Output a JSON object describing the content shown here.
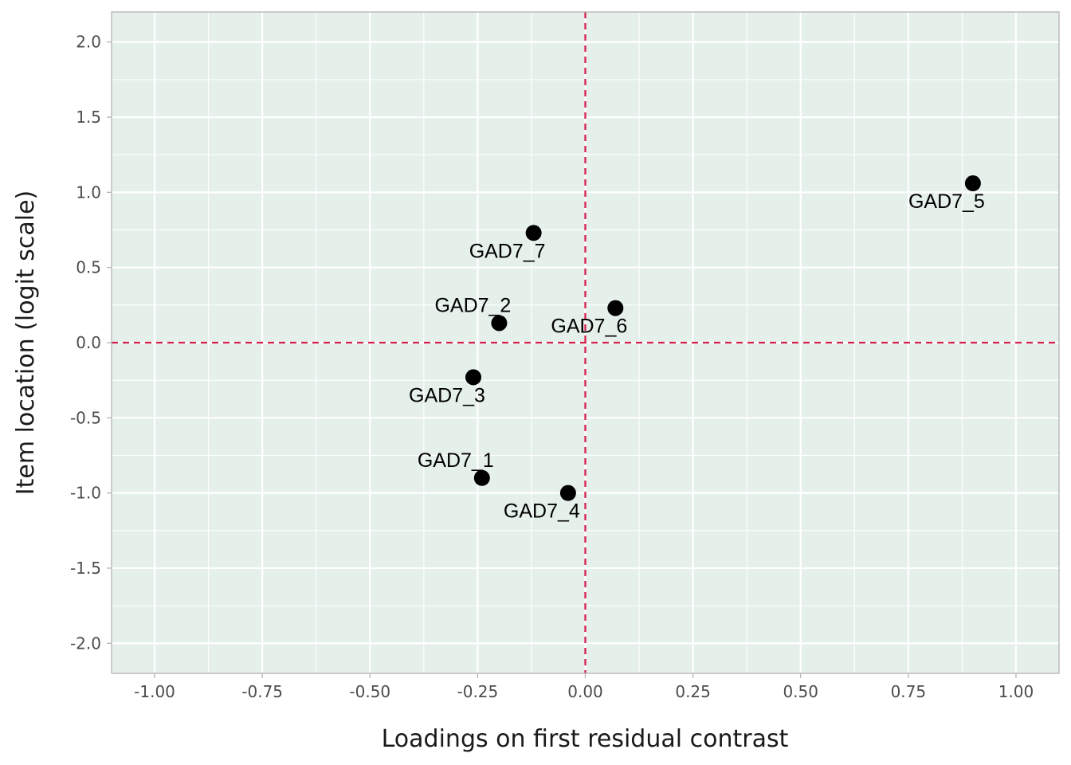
{
  "chart_data": {
    "type": "scatter",
    "title": "",
    "xlabel": "Loadings on first residual contrast",
    "ylabel": "Item location (logit scale)",
    "xlim": [
      -1.1,
      1.1
    ],
    "ylim": [
      -2.2,
      2.2
    ],
    "x_ticks": [
      -1.0,
      -0.75,
      -0.5,
      -0.25,
      0.0,
      0.25,
      0.5,
      0.75,
      1.0
    ],
    "x_tick_labels": [
      "-1.00",
      "-0.75",
      "-0.50",
      "-0.25",
      "0.00",
      "0.25",
      "0.50",
      "0.75",
      "1.00"
    ],
    "y_ticks": [
      2.0,
      1.5,
      1.0,
      0.5,
      0.0,
      -0.5,
      -1.0,
      -1.5,
      -2.0
    ],
    "y_tick_labels": [
      "2.0",
      "1.5",
      "1.0",
      "0.5",
      "0.0",
      "-0.5",
      "-1.0",
      "-1.5",
      "-2.0"
    ],
    "reference_lines": {
      "x": 0,
      "y": 0,
      "style": "dashed",
      "color": "#d6204e"
    },
    "grid": true,
    "background_color": "#e5f0ea",
    "point_color": "#000000",
    "points": [
      {
        "label": "GAD7_1",
        "x": -0.24,
        "y": -0.9,
        "label_pos": "above"
      },
      {
        "label": "GAD7_2",
        "x": -0.2,
        "y": 0.13,
        "label_pos": "above"
      },
      {
        "label": "GAD7_3",
        "x": -0.26,
        "y": -0.23,
        "label_pos": "below"
      },
      {
        "label": "GAD7_4",
        "x": -0.04,
        "y": -1.0,
        "label_pos": "below"
      },
      {
        "label": "GAD7_5",
        "x": 0.9,
        "y": 1.06,
        "label_pos": "below"
      },
      {
        "label": "GAD7_6",
        "x": 0.07,
        "y": 0.23,
        "label_pos": "below"
      },
      {
        "label": "GAD7_7",
        "x": -0.12,
        "y": 0.73,
        "label_pos": "below"
      }
    ]
  }
}
